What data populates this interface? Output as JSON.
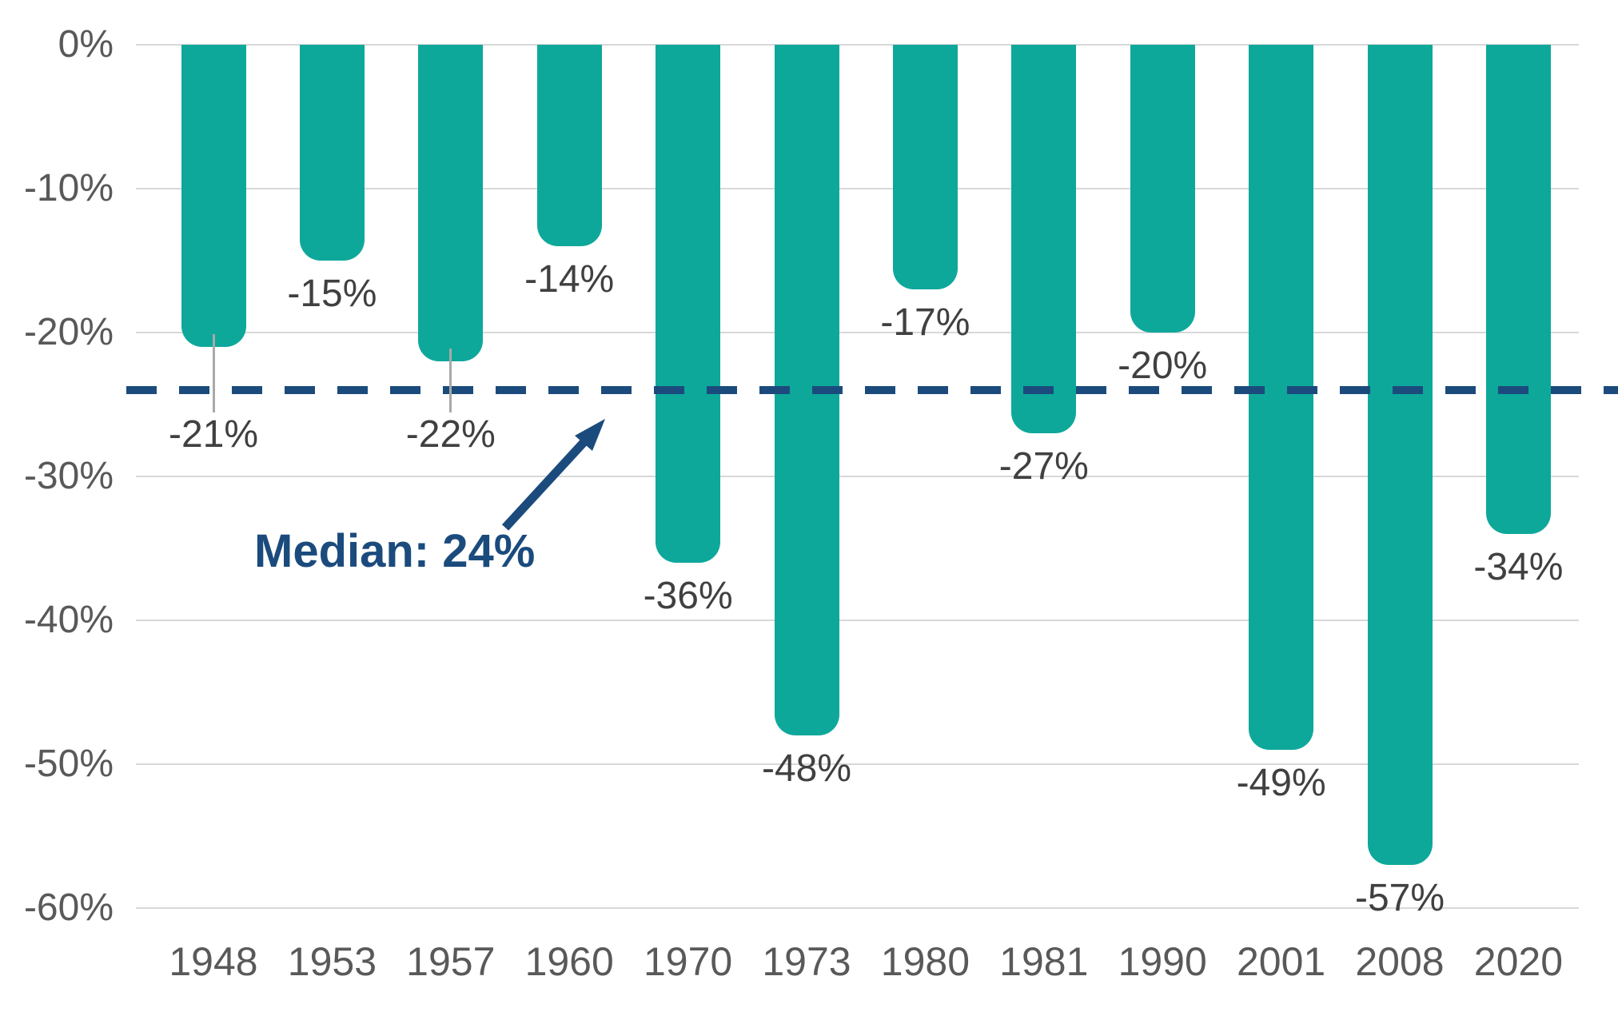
{
  "chart_data": {
    "type": "bar",
    "title": "",
    "xlabel": "",
    "ylabel": "",
    "categories": [
      "1948",
      "1953",
      "1957",
      "1960",
      "1970",
      "1973",
      "1980",
      "1981",
      "1990",
      "2001",
      "2008",
      "2020"
    ],
    "values": [
      -21,
      -15,
      -22,
      -14,
      -36,
      -48,
      -17,
      -27,
      -20,
      -49,
      -57,
      -34
    ],
    "bar_labels": [
      "-21%",
      "-15%",
      "-22%",
      "-14%",
      "-36%",
      "-48%",
      "-17%",
      "-27%",
      "-20%",
      "-49%",
      "-57%",
      "-34%"
    ],
    "yticks": [
      {
        "label": "0%",
        "value": 0
      },
      {
        "label": "-10%",
        "value": -10
      },
      {
        "label": "-20%",
        "value": -20
      },
      {
        "label": "-30%",
        "value": -30
      },
      {
        "label": "-40%",
        "value": -40
      },
      {
        "label": "-50%",
        "value": -50
      },
      {
        "label": "-60%",
        "value": -60
      }
    ],
    "ylim": [
      -60,
      0
    ],
    "grid": true,
    "legend_position": "none",
    "median_line": {
      "value": -24,
      "style": "dashed"
    },
    "annotation": {
      "text": "Median: 24%"
    },
    "labels_moved_below_line": [
      "1948",
      "1957"
    ]
  },
  "colors": {
    "bar": "#0EA89B",
    "navy": "#1B4B7D",
    "gridline": "#D8D8D8",
    "tick_text": "#595959",
    "data_label_text": "#404040",
    "leader_line": "#A9A9A9",
    "background": "#FFFFFF"
  }
}
